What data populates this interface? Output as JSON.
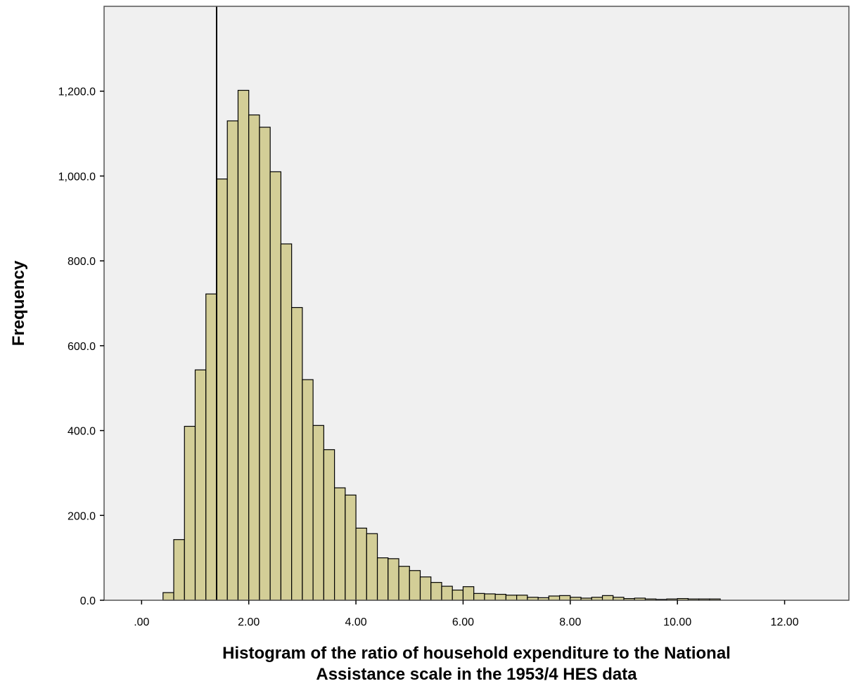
{
  "chart_data": {
    "type": "bar",
    "subtype": "histogram",
    "xlabel_lines": [
      "Histogram of the ratio of household expenditure to the National",
      "Assistance scale in the 1953/4 HES data"
    ],
    "ylabel": "Frequency",
    "xlim": [
      -0.7,
      13.2
    ],
    "ylim": [
      0,
      1400
    ],
    "x_ticks": [
      0,
      2,
      4,
      6,
      8,
      10,
      12
    ],
    "x_tick_labels": [
      ".00",
      "2.00",
      "4.00",
      "6.00",
      "8.00",
      "10.00",
      "12.00"
    ],
    "y_ticks": [
      0,
      200,
      400,
      600,
      800,
      1000,
      1200
    ],
    "y_tick_labels": [
      "0.0",
      "200.0",
      "400.0",
      "600.0",
      "800.0",
      "1,000.0",
      "1,200.0"
    ],
    "bin_width": 0.2,
    "bins_start": 0.4,
    "values": [
      18,
      143,
      410,
      543,
      722,
      993,
      1130,
      1202,
      1144,
      1115,
      1010,
      840,
      690,
      520,
      412,
      355,
      265,
      248,
      170,
      157,
      100,
      98,
      80,
      70,
      55,
      42,
      33,
      24,
      32,
      16,
      15,
      14,
      12,
      12,
      7,
      6,
      10,
      11,
      7,
      5,
      7,
      11,
      7,
      4,
      5,
      3,
      2,
      3,
      4,
      3,
      3,
      3
    ],
    "reference_line_x": 1.4,
    "colors": {
      "plot_background": "#f0f0f0",
      "bar_fill": "#d3ce97",
      "bar_stroke": "#000000",
      "axis": "#000000"
    }
  }
}
